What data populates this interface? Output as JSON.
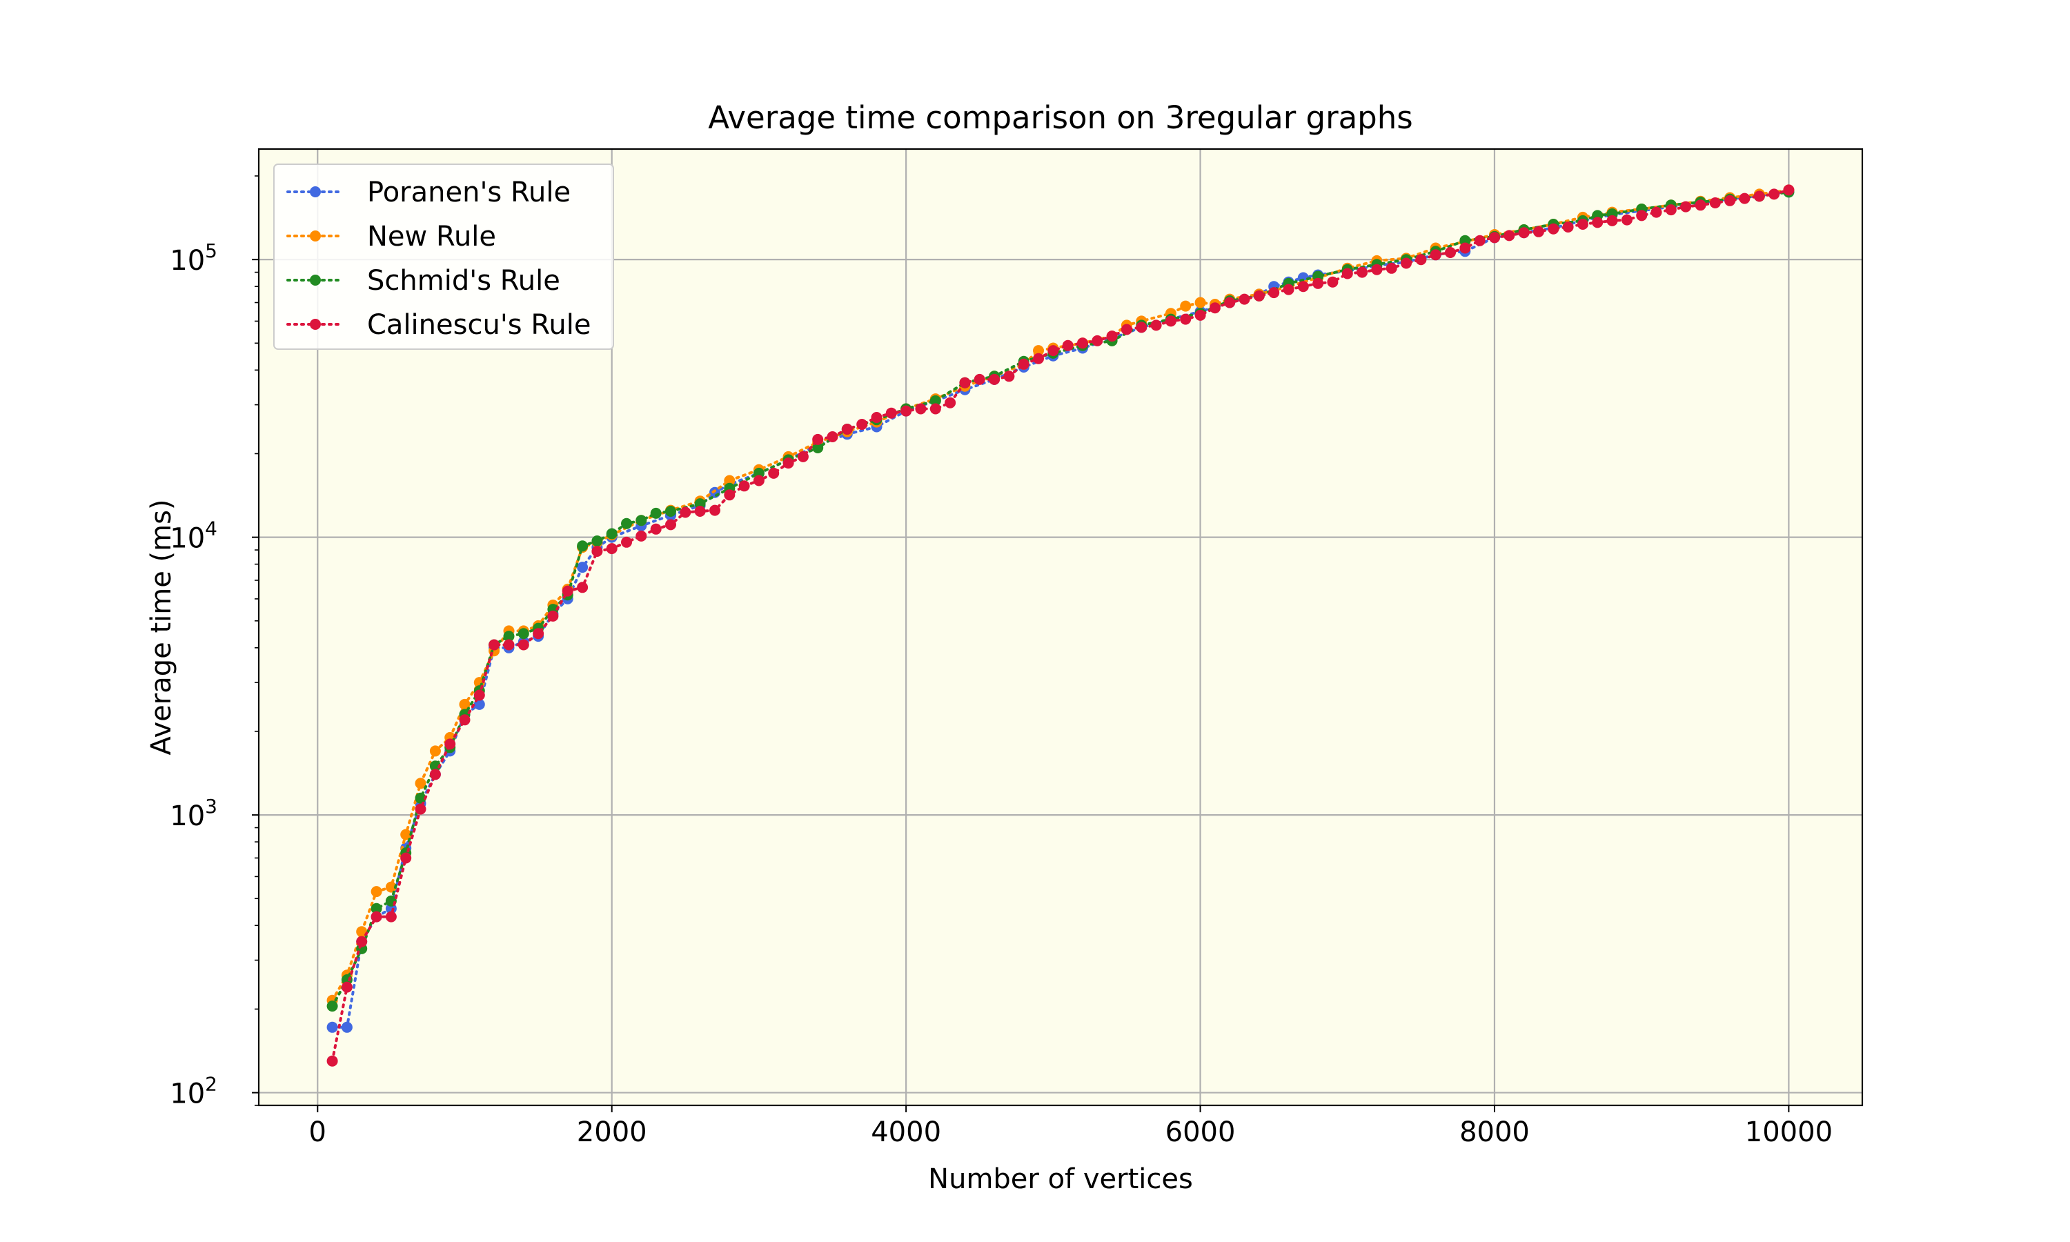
{
  "colors": {
    "plot_background": "#fdfdec",
    "grid": "#b0b0b0",
    "poranen": "#4169e1",
    "new_rule": "#ff8c00",
    "schmid": "#228b22",
    "calinescu": "#dc143c"
  },
  "chart_data": {
    "type": "line",
    "title": "Average time comparison on 3regular graphs",
    "xlabel": "Number of vertices",
    "ylabel": "Average time (ms)",
    "xlim": [
      -400,
      10500
    ],
    "ylim": [
      90,
      250000
    ],
    "yscale": "log",
    "grid": true,
    "legend_position": "top-left",
    "line_style": "dotted",
    "marker": "circle",
    "x_ticks": [
      {
        "value": 0,
        "label": "0"
      },
      {
        "value": 2000,
        "label": "2000"
      },
      {
        "value": 4000,
        "label": "4000"
      },
      {
        "value": 6000,
        "label": "6000"
      },
      {
        "value": 8000,
        "label": "8000"
      },
      {
        "value": 10000,
        "label": "10000"
      }
    ],
    "y_ticks": [
      {
        "value": 100,
        "base": "10",
        "exp": "2"
      },
      {
        "value": 1000,
        "base": "10",
        "exp": "3"
      },
      {
        "value": 10000,
        "base": "10",
        "exp": "4"
      },
      {
        "value": 100000,
        "base": "10",
        "exp": "5"
      }
    ],
    "series": [
      {
        "name": "Poranen's Rule",
        "color_key": "poranen",
        "points": [
          [
            100,
            172
          ],
          [
            200,
            172
          ],
          [
            300,
            350
          ],
          [
            400,
            430
          ],
          [
            500,
            460
          ],
          [
            600,
            760
          ],
          [
            700,
            1100
          ],
          [
            800,
            1400
          ],
          [
            900,
            1700
          ],
          [
            1000,
            2300
          ],
          [
            1100,
            2500
          ],
          [
            1200,
            4000
          ],
          [
            1300,
            4000
          ],
          [
            1400,
            4200
          ],
          [
            1500,
            4400
          ],
          [
            1600,
            5300
          ],
          [
            1700,
            6000
          ],
          [
            1800,
            7800
          ],
          [
            1900,
            9200
          ],
          [
            2000,
            10000
          ],
          [
            2200,
            11000
          ],
          [
            2400,
            12000
          ],
          [
            2600,
            13000
          ],
          [
            2700,
            14500
          ],
          [
            2800,
            15500
          ],
          [
            3000,
            17000
          ],
          [
            3200,
            19000
          ],
          [
            3400,
            21500
          ],
          [
            3600,
            23500
          ],
          [
            3800,
            25000
          ],
          [
            4000,
            28500
          ],
          [
            4200,
            31000
          ],
          [
            4400,
            34000
          ],
          [
            4600,
            37000
          ],
          [
            4800,
            41000
          ],
          [
            5000,
            45000
          ],
          [
            5200,
            48000
          ],
          [
            5400,
            52000
          ],
          [
            5600,
            57000
          ],
          [
            5800,
            61000
          ],
          [
            6000,
            65000
          ],
          [
            6200,
            70000
          ],
          [
            6400,
            75000
          ],
          [
            6500,
            80000
          ],
          [
            6600,
            83000
          ],
          [
            6700,
            86000
          ],
          [
            6800,
            88000
          ],
          [
            7000,
            91000
          ],
          [
            7200,
            95000
          ],
          [
            7400,
            98000
          ],
          [
            7600,
            104000
          ],
          [
            7800,
            107000
          ],
          [
            8000,
            120000
          ],
          [
            8200,
            125000
          ],
          [
            8400,
            130000
          ],
          [
            8600,
            138000
          ],
          [
            8800,
            145000
          ],
          [
            9000,
            150000
          ],
          [
            9200,
            155000
          ],
          [
            9400,
            160000
          ],
          [
            9600,
            165000
          ],
          [
            9800,
            170000
          ],
          [
            10000,
            175000
          ]
        ]
      },
      {
        "name": "New Rule",
        "color_key": "new_rule",
        "points": [
          [
            100,
            215
          ],
          [
            200,
            265
          ],
          [
            300,
            380
          ],
          [
            400,
            530
          ],
          [
            500,
            550
          ],
          [
            600,
            850
          ],
          [
            700,
            1300
          ],
          [
            800,
            1700
          ],
          [
            900,
            1900
          ],
          [
            1000,
            2500
          ],
          [
            1100,
            3000
          ],
          [
            1200,
            3900
          ],
          [
            1300,
            4600
          ],
          [
            1400,
            4600
          ],
          [
            1500,
            4800
          ],
          [
            1600,
            5700
          ],
          [
            1700,
            6500
          ],
          [
            1800,
            9200
          ],
          [
            1900,
            9600
          ],
          [
            2000,
            10200
          ],
          [
            2200,
            11500
          ],
          [
            2400,
            12500
          ],
          [
            2600,
            13500
          ],
          [
            2800,
            16000
          ],
          [
            3000,
            17500
          ],
          [
            3200,
            19500
          ],
          [
            3400,
            22000
          ],
          [
            3600,
            24000
          ],
          [
            3800,
            26000
          ],
          [
            4000,
            29000
          ],
          [
            4200,
            31500
          ],
          [
            4400,
            35000
          ],
          [
            4600,
            38000
          ],
          [
            4800,
            42000
          ],
          [
            4900,
            47000
          ],
          [
            5000,
            48000
          ],
          [
            5200,
            50000
          ],
          [
            5400,
            53000
          ],
          [
            5500,
            58000
          ],
          [
            5600,
            60000
          ],
          [
            5800,
            64000
          ],
          [
            5900,
            68000
          ],
          [
            6000,
            70000
          ],
          [
            6100,
            69000
          ],
          [
            6200,
            72000
          ],
          [
            6400,
            75000
          ],
          [
            6600,
            80000
          ],
          [
            6800,
            86000
          ],
          [
            7000,
            93000
          ],
          [
            7200,
            99000
          ],
          [
            7400,
            101000
          ],
          [
            7600,
            110000
          ],
          [
            7800,
            116000
          ],
          [
            8000,
            123000
          ],
          [
            8200,
            128000
          ],
          [
            8400,
            134000
          ],
          [
            8600,
            142000
          ],
          [
            8800,
            148000
          ],
          [
            9000,
            152000
          ],
          [
            9200,
            157000
          ],
          [
            9400,
            162000
          ],
          [
            9600,
            167000
          ],
          [
            9800,
            172000
          ],
          [
            10000,
            178000
          ]
        ]
      },
      {
        "name": "Schmid's Rule",
        "color_key": "schmid",
        "points": [
          [
            100,
            205
          ],
          [
            200,
            255
          ],
          [
            300,
            330
          ],
          [
            400,
            460
          ],
          [
            500,
            490
          ],
          [
            600,
            730
          ],
          [
            700,
            1150
          ],
          [
            800,
            1500
          ],
          [
            900,
            1750
          ],
          [
            1000,
            2300
          ],
          [
            1100,
            2800
          ],
          [
            1200,
            4100
          ],
          [
            1300,
            4400
          ],
          [
            1400,
            4500
          ],
          [
            1500,
            4700
          ],
          [
            1600,
            5500
          ],
          [
            1700,
            6200
          ],
          [
            1800,
            9300
          ],
          [
            1900,
            9700
          ],
          [
            2000,
            10300
          ],
          [
            2100,
            11200
          ],
          [
            2200,
            11500
          ],
          [
            2300,
            12200
          ],
          [
            2400,
            12400
          ],
          [
            2600,
            13200
          ],
          [
            2800,
            15000
          ],
          [
            3000,
            17000
          ],
          [
            3200,
            19000
          ],
          [
            3400,
            21000
          ],
          [
            3600,
            24500
          ],
          [
            3800,
            26500
          ],
          [
            4000,
            29000
          ],
          [
            4200,
            31000
          ],
          [
            4400,
            36000
          ],
          [
            4600,
            38000
          ],
          [
            4800,
            43000
          ],
          [
            5000,
            46000
          ],
          [
            5200,
            49000
          ],
          [
            5400,
            51000
          ],
          [
            5600,
            58000
          ],
          [
            5800,
            61000
          ],
          [
            6000,
            64000
          ],
          [
            6200,
            71000
          ],
          [
            6400,
            74000
          ],
          [
            6600,
            82000
          ],
          [
            6800,
            87000
          ],
          [
            7000,
            92000
          ],
          [
            7200,
            96000
          ],
          [
            7400,
            100000
          ],
          [
            7600,
            107000
          ],
          [
            7800,
            117000
          ],
          [
            8000,
            121000
          ],
          [
            8200,
            128000
          ],
          [
            8400,
            134000
          ],
          [
            8600,
            138000
          ],
          [
            8700,
            144000
          ],
          [
            8800,
            146000
          ],
          [
            9000,
            152000
          ],
          [
            9200,
            157000
          ],
          [
            9400,
            161000
          ],
          [
            9600,
            165000
          ],
          [
            9800,
            169000
          ],
          [
            10000,
            175000
          ]
        ]
      },
      {
        "name": "Calinescu's Rule",
        "color_key": "calinescu",
        "points": [
          [
            100,
            130
          ],
          [
            200,
            240
          ],
          [
            300,
            350
          ],
          [
            400,
            430
          ],
          [
            500,
            430
          ],
          [
            600,
            700
          ],
          [
            700,
            1050
          ],
          [
            800,
            1400
          ],
          [
            900,
            1800
          ],
          [
            1000,
            2200
          ],
          [
            1100,
            2700
          ],
          [
            1200,
            4100
          ],
          [
            1300,
            4100
          ],
          [
            1400,
            4100
          ],
          [
            1500,
            4500
          ],
          [
            1600,
            5200
          ],
          [
            1700,
            6400
          ],
          [
            1800,
            6600
          ],
          [
            1900,
            8900
          ],
          [
            2000,
            9100
          ],
          [
            2100,
            9600
          ],
          [
            2200,
            10100
          ],
          [
            2300,
            10700
          ],
          [
            2400,
            11100
          ],
          [
            2500,
            12300
          ],
          [
            2600,
            12400
          ],
          [
            2700,
            12500
          ],
          [
            2800,
            14200
          ],
          [
            2900,
            15300
          ],
          [
            3000,
            16000
          ],
          [
            3100,
            17000
          ],
          [
            3200,
            18500
          ],
          [
            3300,
            19500
          ],
          [
            3400,
            22500
          ],
          [
            3500,
            23000
          ],
          [
            3600,
            24500
          ],
          [
            3700,
            25500
          ],
          [
            3800,
            27000
          ],
          [
            3900,
            28000
          ],
          [
            4000,
            28500
          ],
          [
            4100,
            29000
          ],
          [
            4200,
            29000
          ],
          [
            4300,
            30500
          ],
          [
            4400,
            36000
          ],
          [
            4500,
            37000
          ],
          [
            4600,
            37000
          ],
          [
            4700,
            38000
          ],
          [
            4800,
            42000
          ],
          [
            4900,
            44000
          ],
          [
            5000,
            47000
          ],
          [
            5100,
            49000
          ],
          [
            5200,
            50000
          ],
          [
            5300,
            51000
          ],
          [
            5400,
            53000
          ],
          [
            5500,
            56000
          ],
          [
            5600,
            57000
          ],
          [
            5700,
            58000
          ],
          [
            5800,
            60000
          ],
          [
            5900,
            61000
          ],
          [
            6000,
            63000
          ],
          [
            6100,
            67000
          ],
          [
            6200,
            70000
          ],
          [
            6300,
            72000
          ],
          [
            6400,
            74000
          ],
          [
            6500,
            76000
          ],
          [
            6600,
            78000
          ],
          [
            6700,
            80000
          ],
          [
            6800,
            82000
          ],
          [
            6900,
            83000
          ],
          [
            7000,
            89000
          ],
          [
            7100,
            90000
          ],
          [
            7200,
            92000
          ],
          [
            7300,
            93000
          ],
          [
            7400,
            97000
          ],
          [
            7500,
            100000
          ],
          [
            7600,
            104000
          ],
          [
            7700,
            106000
          ],
          [
            7800,
            110000
          ],
          [
            7900,
            117000
          ],
          [
            8000,
            120000
          ],
          [
            8100,
            122000
          ],
          [
            8200,
            125000
          ],
          [
            8300,
            126000
          ],
          [
            8400,
            129000
          ],
          [
            8500,
            131000
          ],
          [
            8600,
            134000
          ],
          [
            8700,
            136000
          ],
          [
            8800,
            138000
          ],
          [
            8900,
            139000
          ],
          [
            9000,
            144000
          ],
          [
            9100,
            148000
          ],
          [
            9200,
            151000
          ],
          [
            9300,
            155000
          ],
          [
            9400,
            157000
          ],
          [
            9500,
            160000
          ],
          [
            9600,
            163000
          ],
          [
            9700,
            166000
          ],
          [
            9800,
            169000
          ],
          [
            9900,
            172000
          ],
          [
            10000,
            178000
          ]
        ]
      }
    ]
  }
}
